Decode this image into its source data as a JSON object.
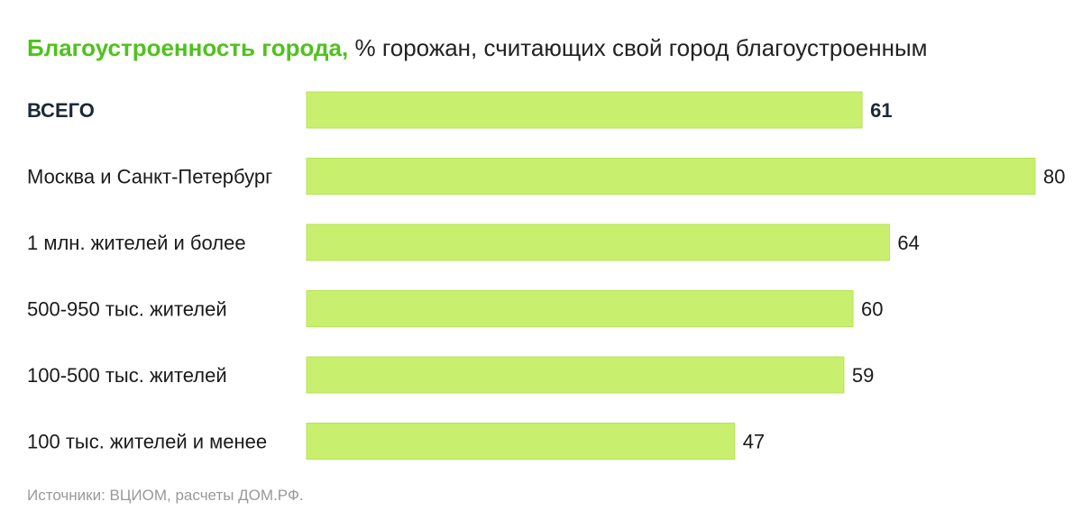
{
  "title": {
    "main": "Благоустроенность города,",
    "sub": "% горожан, считающих свой город благоустроенным"
  },
  "source": "Источники: ВЦИОМ, расчеты ДОМ.РФ.",
  "colors": {
    "bar_fill": "#c8f06e",
    "bar_stroke": "#b6e354",
    "title_accent": "#4fc21c",
    "total_label": "#1b2a3a",
    "text": "#1a1a1a"
  },
  "chart_data": {
    "type": "bar",
    "orientation": "horizontal",
    "title": "Благоустроенность города, % горожан, считающих свой город благоустроенным",
    "categories": [
      "ВСЕГО",
      "Москва и Санкт-Петербург",
      "1 млн. жителей и более",
      "500-950 тыс. жителей",
      "100-500 тыс. жителей",
      "100 тыс. жителей и менее"
    ],
    "values": [
      61,
      80,
      64,
      60,
      59,
      47
    ],
    "value_labels": [
      "61",
      "80",
      "64",
      "60",
      "59",
      "47"
    ],
    "emphasized": [
      true,
      false,
      false,
      false,
      false,
      false
    ],
    "xlim": [
      0,
      80
    ],
    "grid": false,
    "legend": "none"
  }
}
